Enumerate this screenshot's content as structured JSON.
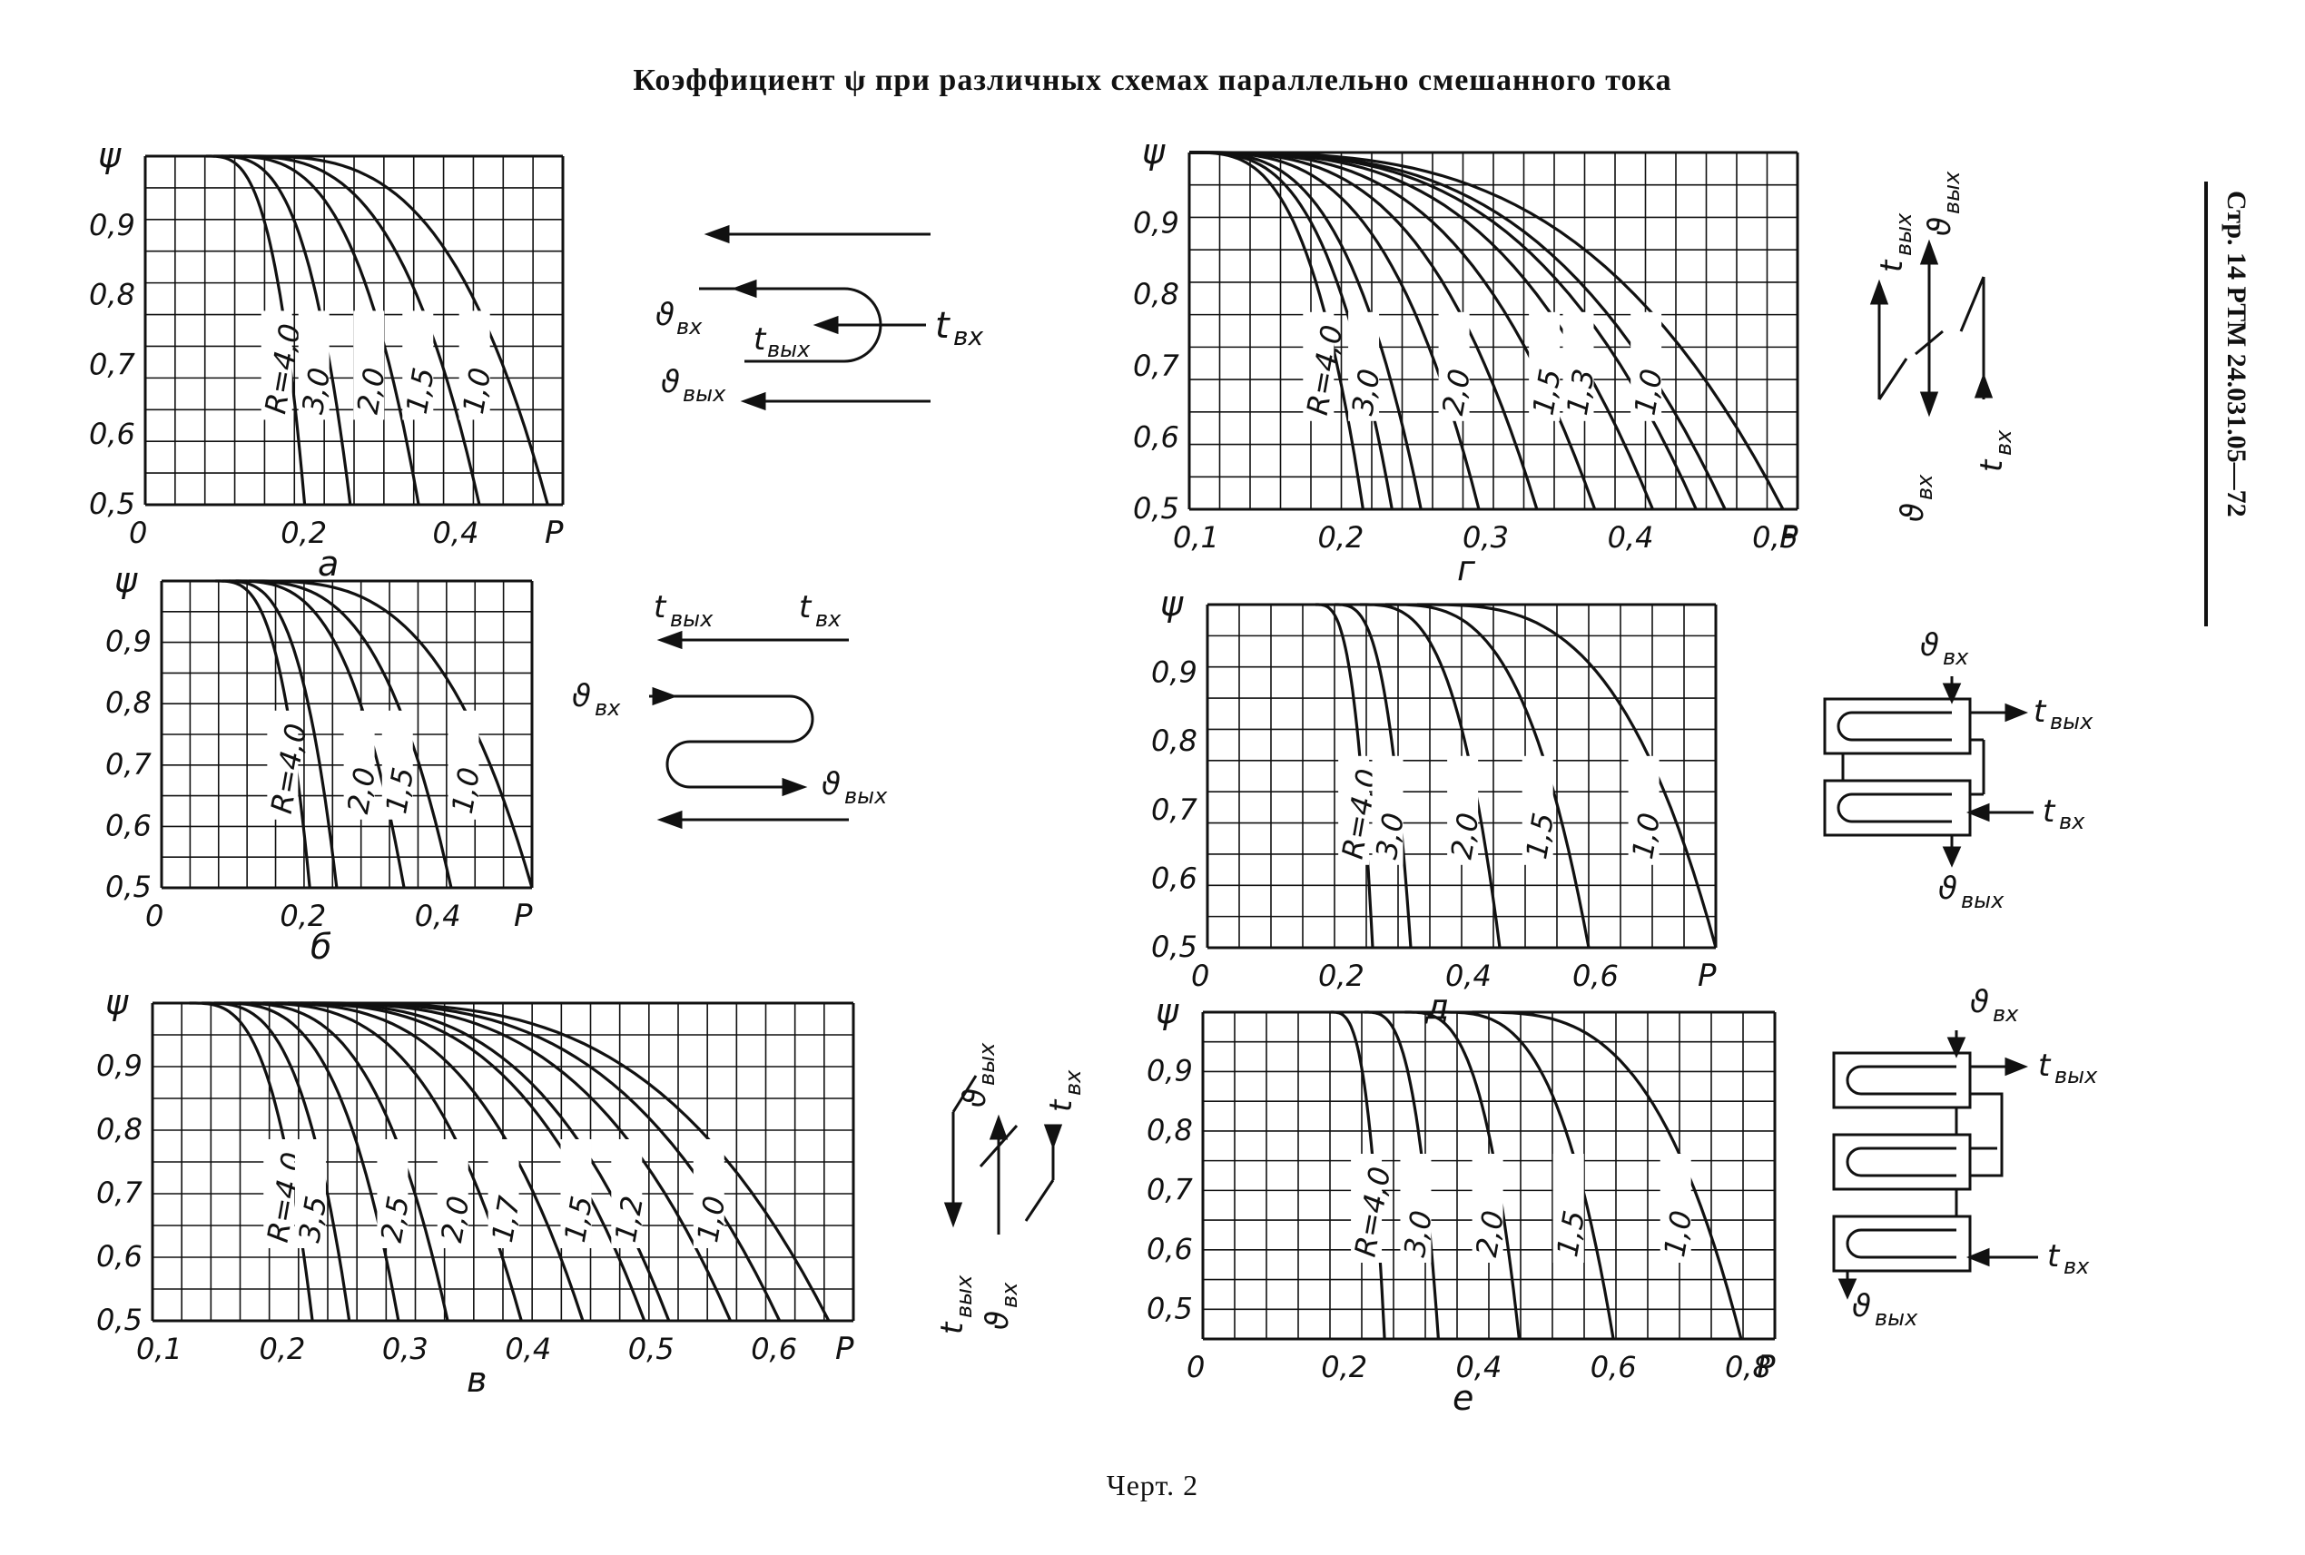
{
  "title": "Коэффициент ψ при различных схемах параллельно смешанного тока",
  "caption": "Черт. 2",
  "side_text": "Стр. 14  РТМ 24.031.05—72",
  "chart_data": [
    {
      "id": "a",
      "type": "line",
      "panel_label": "а",
      "ylabel": "ψ",
      "xlabel": "P",
      "xlim": [
        0,
        0.55
      ],
      "ylim": [
        0.5,
        1.0
      ],
      "xticks": [
        {
          "v": 0,
          "t": "0"
        },
        {
          "v": 0.2,
          "t": "0,2"
        },
        {
          "v": 0.4,
          "t": "0,4"
        }
      ],
      "yticks": [
        {
          "v": 0.5,
          "t": "0,5"
        },
        {
          "v": 0.6,
          "t": "0,6"
        },
        {
          "v": 0.7,
          "t": "0,7"
        },
        {
          "v": 0.8,
          "t": "0,8"
        },
        {
          "v": 0.9,
          "t": "0,9"
        }
      ],
      "series": [
        {
          "name": "R=4,0",
          "x0": 0.08,
          "x1": 0.21
        },
        {
          "name": "3,0",
          "x0": 0.09,
          "x1": 0.27
        },
        {
          "name": "2,0",
          "x0": 0.1,
          "x1": 0.36
        },
        {
          "name": "1,5",
          "x0": 0.11,
          "x1": 0.44
        },
        {
          "name": "1,0",
          "x0": 0.13,
          "x1": 0.53
        }
      ]
    },
    {
      "id": "b",
      "type": "line",
      "panel_label": "б",
      "ylabel": "ψ",
      "xlabel": "P",
      "xlim": [
        0,
        0.55
      ],
      "ylim": [
        0.5,
        1.0
      ],
      "xticks": [
        {
          "v": 0,
          "t": "0"
        },
        {
          "v": 0.2,
          "t": "0,2"
        },
        {
          "v": 0.4,
          "t": "0,4"
        }
      ],
      "yticks": [
        {
          "v": 0.5,
          "t": "0,5"
        },
        {
          "v": 0.6,
          "t": "0,6"
        },
        {
          "v": 0.7,
          "t": "0,7"
        },
        {
          "v": 0.8,
          "t": "0,8"
        },
        {
          "v": 0.9,
          "t": "0,9"
        }
      ],
      "series": [
        {
          "name": "R=4,0",
          "x0": 0.08,
          "x1": 0.22
        },
        {
          "name": "",
          "x0": 0.09,
          "x1": 0.26
        },
        {
          "name": "2,0",
          "x0": 0.1,
          "x1": 0.36
        },
        {
          "name": "1,5",
          "x0": 0.11,
          "x1": 0.43
        },
        {
          "name": "1,0",
          "x0": 0.13,
          "x1": 0.55
        }
      ]
    },
    {
      "id": "v",
      "type": "line",
      "panel_label": "в",
      "ylabel": "ψ",
      "xlabel": "P",
      "xlim": [
        0.1,
        0.67
      ],
      "ylim": [
        0.5,
        1.0
      ],
      "xticks": [
        {
          "v": 0.1,
          "t": "0,1"
        },
        {
          "v": 0.2,
          "t": "0,2"
        },
        {
          "v": 0.3,
          "t": "0,3"
        },
        {
          "v": 0.4,
          "t": "0,4"
        },
        {
          "v": 0.5,
          "t": "0,5"
        },
        {
          "v": 0.6,
          "t": "0,6"
        }
      ],
      "yticks": [
        {
          "v": 0.5,
          "t": "0,5"
        },
        {
          "v": 0.6,
          "t": "0,6"
        },
        {
          "v": 0.7,
          "t": "0,7"
        },
        {
          "v": 0.8,
          "t": "0,8"
        },
        {
          "v": 0.9,
          "t": "0,9"
        }
      ],
      "series": [
        {
          "name": "R=4,0",
          "x0": 0.13,
          "x1": 0.23
        },
        {
          "name": "3,5",
          "x0": 0.14,
          "x1": 0.26
        },
        {
          "name": "",
          "x0": 0.15,
          "x1": 0.3
        },
        {
          "name": "2,5",
          "x0": 0.16,
          "x1": 0.34
        },
        {
          "name": "2,0",
          "x0": 0.17,
          "x1": 0.4
        },
        {
          "name": "1,7",
          "x0": 0.18,
          "x1": 0.45
        },
        {
          "name": "",
          "x0": 0.19,
          "x1": 0.5
        },
        {
          "name": "1,5",
          "x0": 0.2,
          "x1": 0.52
        },
        {
          "name": "1,2",
          "x0": 0.21,
          "x1": 0.57
        },
        {
          "name": "",
          "x0": 0.22,
          "x1": 0.61
        },
        {
          "name": "1,0",
          "x0": 0.23,
          "x1": 0.65
        }
      ]
    },
    {
      "id": "g",
      "type": "line",
      "panel_label": "г",
      "ylabel": "ψ",
      "xlabel": "P",
      "xlim": [
        0.1,
        0.52
      ],
      "ylim": [
        0.5,
        1.0
      ],
      "xticks": [
        {
          "v": 0.1,
          "t": "0,1"
        },
        {
          "v": 0.2,
          "t": "0,2"
        },
        {
          "v": 0.3,
          "t": "0,3"
        },
        {
          "v": 0.4,
          "t": "0,4"
        },
        {
          "v": 0.5,
          "t": "0,5"
        }
      ],
      "yticks": [
        {
          "v": 0.5,
          "t": "0,5"
        },
        {
          "v": 0.6,
          "t": "0,6"
        },
        {
          "v": 0.7,
          "t": "0,7"
        },
        {
          "v": 0.8,
          "t": "0,8"
        },
        {
          "v": 0.9,
          "t": "0,9"
        }
      ],
      "series": [
        {
          "name": "R=4,0",
          "x0": 0.1,
          "x1": 0.22
        },
        {
          "name": "",
          "x0": 0.1,
          "x1": 0.24
        },
        {
          "name": "3,0",
          "x0": 0.1,
          "x1": 0.26
        },
        {
          "name": "",
          "x0": 0.1,
          "x1": 0.3
        },
        {
          "name": "2,0",
          "x0": 0.1,
          "x1": 0.34
        },
        {
          "name": "",
          "x0": 0.1,
          "x1": 0.38
        },
        {
          "name": "1,5",
          "x0": 0.1,
          "x1": 0.42
        },
        {
          "name": "1,3",
          "x0": 0.1,
          "x1": 0.45
        },
        {
          "name": "",
          "x0": 0.1,
          "x1": 0.47
        },
        {
          "name": "1,0",
          "x0": 0.1,
          "x1": 0.51
        }
      ]
    },
    {
      "id": "d",
      "type": "line",
      "panel_label": "д",
      "ylabel": "ψ",
      "xlabel": "P",
      "xlim": [
        0,
        0.8
      ],
      "ylim": [
        0.5,
        1.0
      ],
      "xticks": [
        {
          "v": 0,
          "t": "0"
        },
        {
          "v": 0.2,
          "t": "0,2"
        },
        {
          "v": 0.4,
          "t": "0,4"
        },
        {
          "v": 0.6,
          "t": "0,6"
        }
      ],
      "yticks": [
        {
          "v": 0.5,
          "t": "0,5"
        },
        {
          "v": 0.6,
          "t": "0,6"
        },
        {
          "v": 0.7,
          "t": "0,7"
        },
        {
          "v": 0.8,
          "t": "0,8"
        },
        {
          "v": 0.9,
          "t": "0,9"
        }
      ],
      "series": [
        {
          "name": "R=4,0",
          "x0": 0.17,
          "x1": 0.26
        },
        {
          "name": "3,0",
          "x0": 0.2,
          "x1": 0.32
        },
        {
          "name": "2,0",
          "x0": 0.24,
          "x1": 0.46
        },
        {
          "name": "1,5",
          "x0": 0.28,
          "x1": 0.6
        },
        {
          "name": "1,0",
          "x0": 0.33,
          "x1": 0.8
        }
      ]
    },
    {
      "id": "e",
      "type": "line",
      "panel_label": "е",
      "ylabel": "ψ",
      "xlabel": "P",
      "xlim": [
        0,
        0.85
      ],
      "ylim": [
        0.45,
        1.0
      ],
      "xticks": [
        {
          "v": 0,
          "t": "0"
        },
        {
          "v": 0.2,
          "t": "0,2"
        },
        {
          "v": 0.4,
          "t": "0,4"
        },
        {
          "v": 0.6,
          "t": "0,6"
        },
        {
          "v": 0.8,
          "t": "0,8"
        }
      ],
      "yticks": [
        {
          "v": 0.5,
          "t": "0,5"
        },
        {
          "v": 0.6,
          "t": "0,6"
        },
        {
          "v": 0.7,
          "t": "0,7"
        },
        {
          "v": 0.8,
          "t": "0,8"
        },
        {
          "v": 0.9,
          "t": "0,9"
        }
      ],
      "series": [
        {
          "name": "R=4,0",
          "x0": 0.19,
          "x1": 0.27
        },
        {
          "name": "3,0",
          "x0": 0.24,
          "x1": 0.35
        },
        {
          "name": "2,0",
          "x0": 0.3,
          "x1": 0.47
        },
        {
          "name": "1,5",
          "x0": 0.35,
          "x1": 0.61
        },
        {
          "name": "1,0",
          "x0": 0.4,
          "x1": 0.8
        }
      ]
    }
  ],
  "schemes": {
    "a": {
      "t_in": "t",
      "t_in_sub": "вх",
      "t_out": "t",
      "t_out_sub": "вых",
      "th_in": "ϑ",
      "th_in_sub": "вх",
      "th_out": "ϑ",
      "th_out_sub": "вых"
    },
    "b": {
      "t_in": "t",
      "t_in_sub": "вх",
      "t_out": "t",
      "t_out_sub": "вых",
      "th_in": "ϑ",
      "th_in_sub": "вх",
      "th_out": "ϑ",
      "th_out_sub": "вых"
    },
    "v": {
      "t_in": "t",
      "t_in_sub": "вх",
      "t_out": "t",
      "t_out_sub": "вых",
      "th_in": "ϑ",
      "th_in_sub": "вх",
      "th_out": "ϑ",
      "th_out_sub": "вых"
    },
    "g": {
      "t_in": "t",
      "t_in_sub": "вх",
      "t_out": "t",
      "t_out_sub": "вых",
      "th_in": "ϑ",
      "th_in_sub": "вх",
      "th_out": "ϑ",
      "th_out_sub": "вых"
    },
    "d": {
      "t_in": "t",
      "t_in_sub": "вх",
      "t_out": "t",
      "t_out_sub": "вых",
      "th_in": "ϑ",
      "th_in_sub": "вх",
      "th_out": "ϑ",
      "th_out_sub": "вых"
    },
    "e": {
      "t_in": "t",
      "t_in_sub": "вх",
      "t_out": "t",
      "t_out_sub": "вых",
      "th_in": "ϑ",
      "th_in_sub": "вх",
      "th_out": "ϑ",
      "th_out_sub": "вых"
    }
  }
}
